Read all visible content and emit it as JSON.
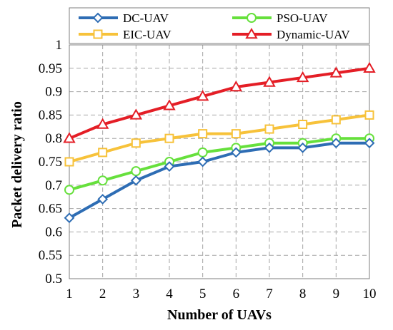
{
  "chart_data": {
    "type": "line",
    "title": "",
    "xlabel": "Number of UAVs",
    "ylabel": "Packet delivery ratio",
    "x": [
      1,
      2,
      3,
      4,
      5,
      6,
      7,
      8,
      9,
      10
    ],
    "xlim": [
      1,
      10
    ],
    "ylim": [
      0.5,
      1
    ],
    "yticks": [
      "0.5",
      "0.55",
      "0.6",
      "0.65",
      "0.7",
      "0.75",
      "0.8",
      "0.85",
      "0.9",
      "0.95",
      "1"
    ],
    "xticks": [
      "1",
      "2",
      "3",
      "4",
      "5",
      "6",
      "7",
      "8",
      "9",
      "10"
    ],
    "grid": true,
    "legend": "top",
    "series": [
      {
        "name": "DC-UAV",
        "color": "#2e6db4",
        "marker": "diamond",
        "values": [
          0.63,
          0.67,
          0.71,
          0.74,
          0.75,
          0.77,
          0.78,
          0.78,
          0.79,
          0.79
        ]
      },
      {
        "name": "PSO-UAV",
        "color": "#66e03c",
        "marker": "circle",
        "values": [
          0.69,
          0.71,
          0.73,
          0.75,
          0.77,
          0.78,
          0.79,
          0.79,
          0.8,
          0.8
        ]
      },
      {
        "name": "EIC-UAV",
        "color": "#f7c23a",
        "marker": "square",
        "values": [
          0.75,
          0.77,
          0.79,
          0.8,
          0.81,
          0.81,
          0.82,
          0.83,
          0.84,
          0.85
        ]
      },
      {
        "name": "Dynamic-UAV",
        "color": "#e41e26",
        "marker": "triangle",
        "values": [
          0.8,
          0.83,
          0.85,
          0.87,
          0.89,
          0.91,
          0.92,
          0.93,
          0.94,
          0.95
        ]
      }
    ]
  }
}
